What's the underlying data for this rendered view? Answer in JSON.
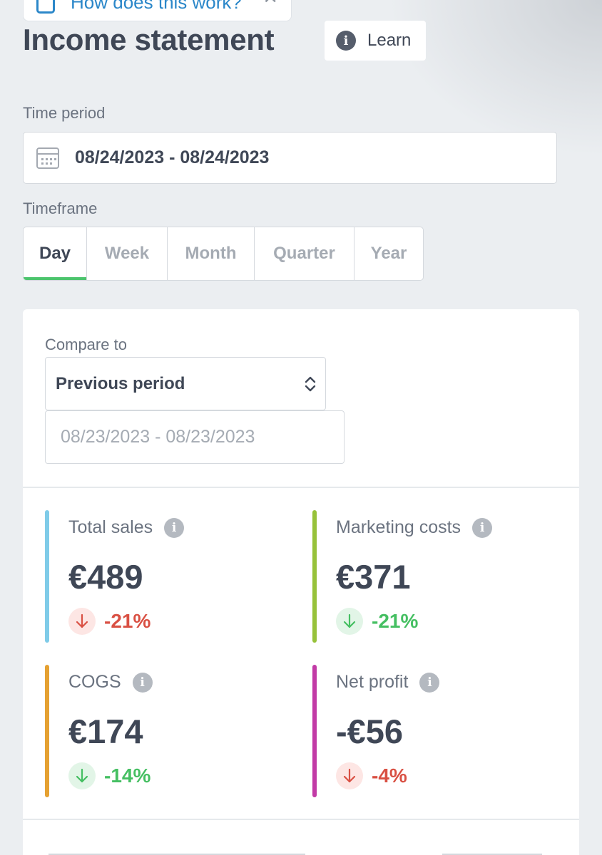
{
  "help_banner": {
    "text": "How does this work?"
  },
  "page": {
    "title": "Income statement",
    "learn_label": "Learn"
  },
  "time_period": {
    "label": "Time period",
    "value": "08/24/2023 - 08/24/2023"
  },
  "timeframe": {
    "label": "Timeframe",
    "tabs": [
      "Day",
      "Week",
      "Month",
      "Quarter",
      "Year"
    ],
    "active": "Day",
    "active_color": "#4cc46d"
  },
  "compare": {
    "label": "Compare to",
    "selected": "Previous period",
    "date_range": "08/23/2023 - 08/23/2023"
  },
  "metrics": [
    {
      "label": "Total sales",
      "value": "€489",
      "change": "-21%",
      "direction": "down",
      "sentiment": "negative",
      "color": "#7fcbe8"
    },
    {
      "label": "Marketing costs",
      "value": "€371",
      "change": "-21%",
      "direction": "down",
      "sentiment": "positive",
      "color": "#97c23a"
    },
    {
      "label": "COGS",
      "value": "€174",
      "change": "-14%",
      "direction": "down",
      "sentiment": "positive",
      "color": "#e5a132"
    },
    {
      "label": "Net profit",
      "value": "-€56",
      "change": "-4%",
      "direction": "down",
      "sentiment": "negative",
      "color": "#c23aa6"
    }
  ]
}
